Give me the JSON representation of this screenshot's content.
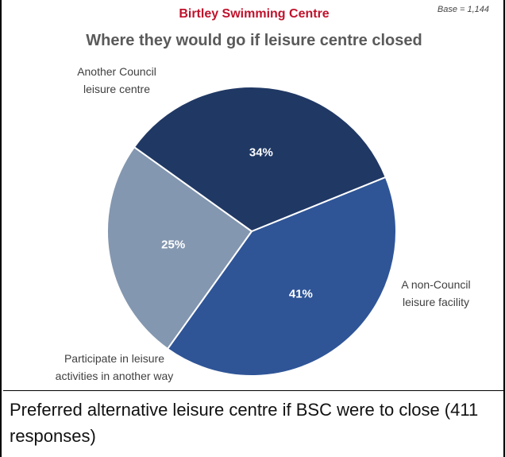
{
  "header": {
    "base_note": "Base = 1,144"
  },
  "chart_data": {
    "type": "pie",
    "title": "Birtley Swimming Centre",
    "subtitle": "Where they would go if leisure centre closed",
    "slices": [
      {
        "label_lines": [
          "A non-Council",
          "leisure facility"
        ],
        "value": 41,
        "value_label": "41%",
        "color": "#2f5597"
      },
      {
        "label_lines": [
          "Participate in leisure",
          "activities in another way"
        ],
        "value": 25,
        "value_label": "25%",
        "color": "#8497b0"
      },
      {
        "label_lines": [
          "Another Council",
          "leisure centre"
        ],
        "value": 34,
        "value_label": "34%",
        "color": "#203864"
      }
    ]
  },
  "caption": {
    "text": "Preferred alternative leisure centre if BSC were to close (411 responses)"
  }
}
